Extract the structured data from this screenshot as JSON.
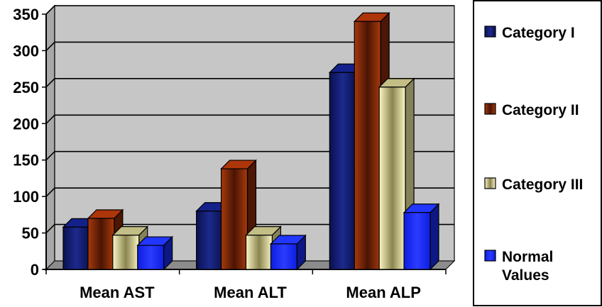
{
  "chart_data": {
    "type": "bar",
    "categories": [
      "Mean AST",
      "Mean ALT",
      "Mean ALP"
    ],
    "series": [
      {
        "name": "Category I",
        "values": [
          58,
          80,
          270
        ],
        "color": "#101a6e"
      },
      {
        "name": "Category II",
        "values": [
          70,
          138,
          340
        ],
        "color": "#8a2a08"
      },
      {
        "name": "Category III",
        "values": [
          47,
          47,
          250
        ],
        "color": "#f2eda6"
      },
      {
        "name": "Normal Values",
        "values": [
          33,
          35,
          78
        ],
        "color": "#1a2cf0"
      }
    ],
    "ylim": [
      0,
      350
    ],
    "yticks": [
      "0",
      "50",
      "100",
      "150",
      "200",
      "250",
      "300",
      "350"
    ],
    "title": "",
    "xlabel": "",
    "ylabel": "",
    "grid": true,
    "legend_position": "right",
    "legend_lines": [
      [
        "Category I"
      ],
      [
        "Category II"
      ],
      [
        "Category III"
      ],
      [
        "Normal",
        "Values"
      ]
    ],
    "plot_background": "#c6c6c6"
  }
}
